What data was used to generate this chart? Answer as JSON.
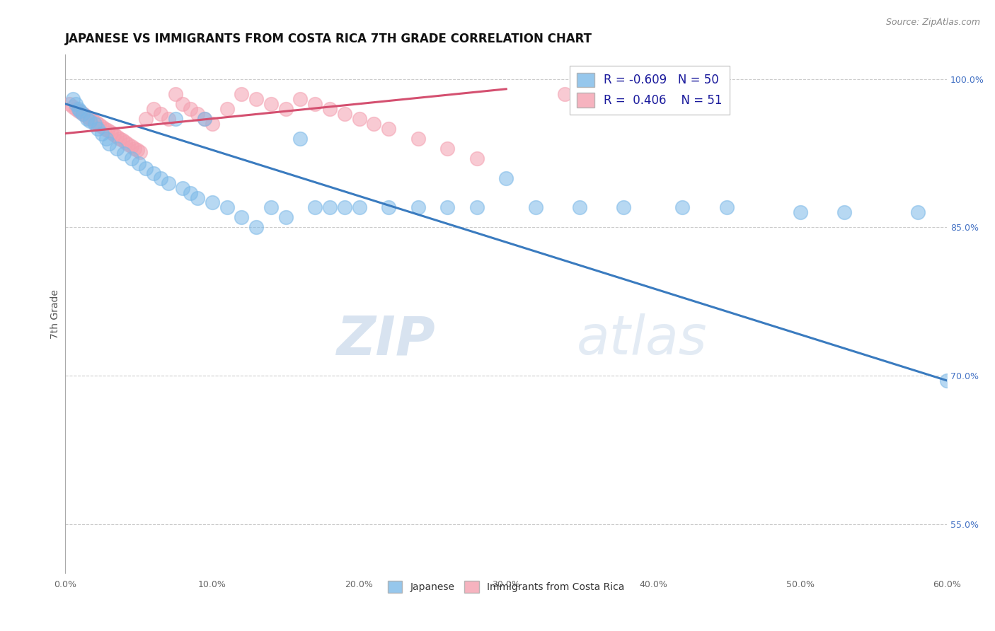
{
  "title": "JAPANESE VS IMMIGRANTS FROM COSTA RICA 7TH GRADE CORRELATION CHART",
  "source": "Source: ZipAtlas.com",
  "ylabel": "7th Grade",
  "watermark_zip": "ZIP",
  "watermark_atlas": "atlas",
  "xmin": 0.0,
  "xmax": 0.6,
  "ymin": 0.5,
  "ymax": 1.025,
  "xtick_vals": [
    0.0,
    0.1,
    0.2,
    0.3,
    0.4,
    0.5,
    0.6
  ],
  "xtick_labels": [
    "0.0%",
    "10.0%",
    "20.0%",
    "30.0%",
    "40.0%",
    "50.0%",
    "60.0%"
  ],
  "ytick_vals": [
    0.55,
    0.7,
    0.85,
    1.0
  ],
  "ytick_labels": [
    "55.0%",
    "70.0%",
    "85.0%",
    "100.0%"
  ],
  "blue_color": "#7cb9e8",
  "pink_color": "#f4a0b0",
  "blue_line_color": "#3a7bbf",
  "pink_line_color": "#d45070",
  "legend_R_blue": "-0.609",
  "legend_N_blue": "50",
  "legend_R_pink": "0.406",
  "legend_N_pink": "51",
  "legend_label_blue": "Japanese",
  "legend_label_pink": "Immigrants from Costa Rica",
  "blue_line_x0": 0.0,
  "blue_line_x1": 0.6,
  "blue_line_y0": 0.975,
  "blue_line_y1": 0.695,
  "pink_line_x0": 0.0,
  "pink_line_x1": 0.3,
  "pink_line_y0": 0.945,
  "pink_line_y1": 0.99,
  "blue_dots_x": [
    0.005,
    0.007,
    0.009,
    0.01,
    0.012,
    0.015,
    0.017,
    0.02,
    0.022,
    0.025,
    0.028,
    0.03,
    0.035,
    0.04,
    0.045,
    0.05,
    0.055,
    0.06,
    0.065,
    0.07,
    0.075,
    0.08,
    0.085,
    0.09,
    0.095,
    0.1,
    0.11,
    0.12,
    0.13,
    0.14,
    0.15,
    0.16,
    0.17,
    0.18,
    0.19,
    0.2,
    0.22,
    0.24,
    0.26,
    0.28,
    0.3,
    0.32,
    0.35,
    0.38,
    0.42,
    0.45,
    0.5,
    0.53,
    0.58,
    0.6
  ],
  "blue_dots_y": [
    0.98,
    0.975,
    0.97,
    0.968,
    0.965,
    0.96,
    0.958,
    0.955,
    0.95,
    0.945,
    0.94,
    0.935,
    0.93,
    0.925,
    0.92,
    0.915,
    0.91,
    0.905,
    0.9,
    0.895,
    0.96,
    0.89,
    0.885,
    0.88,
    0.96,
    0.875,
    0.87,
    0.86,
    0.85,
    0.87,
    0.86,
    0.94,
    0.87,
    0.87,
    0.87,
    0.87,
    0.87,
    0.87,
    0.87,
    0.87,
    0.9,
    0.87,
    0.87,
    0.87,
    0.87,
    0.87,
    0.865,
    0.865,
    0.865,
    0.695
  ],
  "pink_dots_x": [
    0.003,
    0.005,
    0.007,
    0.009,
    0.011,
    0.013,
    0.015,
    0.017,
    0.019,
    0.021,
    0.023,
    0.025,
    0.027,
    0.029,
    0.031,
    0.033,
    0.035,
    0.037,
    0.039,
    0.041,
    0.043,
    0.045,
    0.047,
    0.049,
    0.051,
    0.055,
    0.06,
    0.065,
    0.07,
    0.075,
    0.08,
    0.085,
    0.09,
    0.095,
    0.1,
    0.11,
    0.12,
    0.13,
    0.14,
    0.15,
    0.16,
    0.17,
    0.18,
    0.19,
    0.2,
    0.21,
    0.22,
    0.24,
    0.26,
    0.28,
    0.34
  ],
  "pink_dots_y": [
    0.975,
    0.972,
    0.97,
    0.968,
    0.966,
    0.964,
    0.962,
    0.96,
    0.958,
    0.956,
    0.954,
    0.952,
    0.95,
    0.948,
    0.946,
    0.944,
    0.942,
    0.94,
    0.938,
    0.936,
    0.934,
    0.932,
    0.93,
    0.928,
    0.926,
    0.96,
    0.97,
    0.965,
    0.96,
    0.985,
    0.975,
    0.97,
    0.965,
    0.96,
    0.955,
    0.97,
    0.985,
    0.98,
    0.975,
    0.97,
    0.98,
    0.975,
    0.97,
    0.965,
    0.96,
    0.955,
    0.95,
    0.94,
    0.93,
    0.92,
    0.985
  ],
  "grid_color": "#cccccc",
  "bg_color": "#ffffff"
}
